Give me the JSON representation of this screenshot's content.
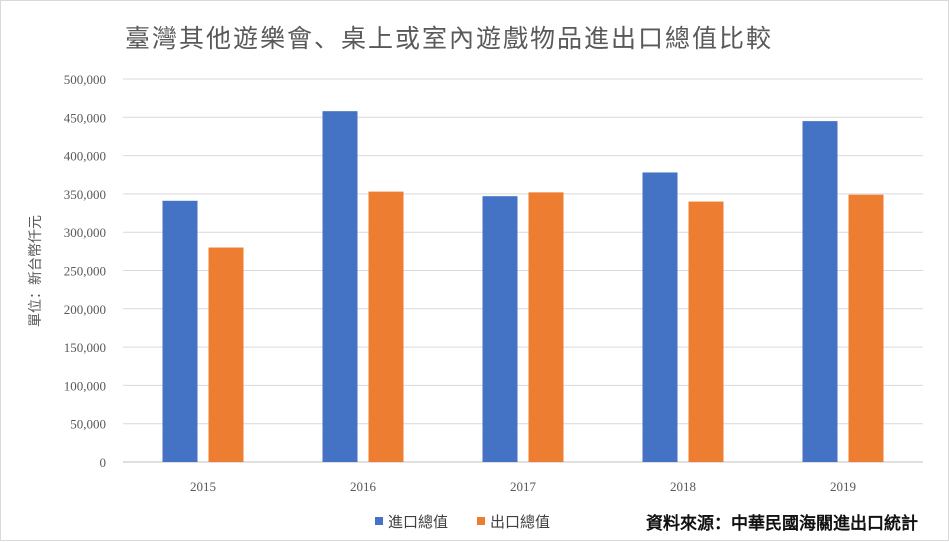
{
  "chart_data": {
    "type": "bar",
    "title": "臺灣其他遊樂會、桌上或室內遊戲物品進出口總值比較",
    "ylabel": "單位：新台幣仟元",
    "xlabel": "",
    "categories": [
      "2015",
      "2016",
      "2017",
      "2018",
      "2019"
    ],
    "series": [
      {
        "name": "進口總值",
        "color": "#4472c4",
        "values": [
          341000,
          458000,
          347000,
          378000,
          445000
        ]
      },
      {
        "name": "出口總值",
        "color": "#ed7d31",
        "values": [
          280000,
          353000,
          352000,
          340000,
          349000
        ]
      }
    ],
    "ylim": [
      0,
      500000
    ],
    "yticks": [
      0,
      50000,
      100000,
      150000,
      200000,
      250000,
      300000,
      350000,
      400000,
      450000,
      500000
    ],
    "ytick_labels": [
      "0",
      "50,000",
      "100,000",
      "150,000",
      "200,000",
      "250,000",
      "300,000",
      "350,000",
      "400,000",
      "450,000",
      "500,000"
    ],
    "grid": true,
    "legend_position": "bottom",
    "source": "資料來源：中華民國海關進出口統計"
  },
  "colors": {
    "grid": "#d9d9d9",
    "axis": "#bfbfbf",
    "text": "#595959"
  }
}
